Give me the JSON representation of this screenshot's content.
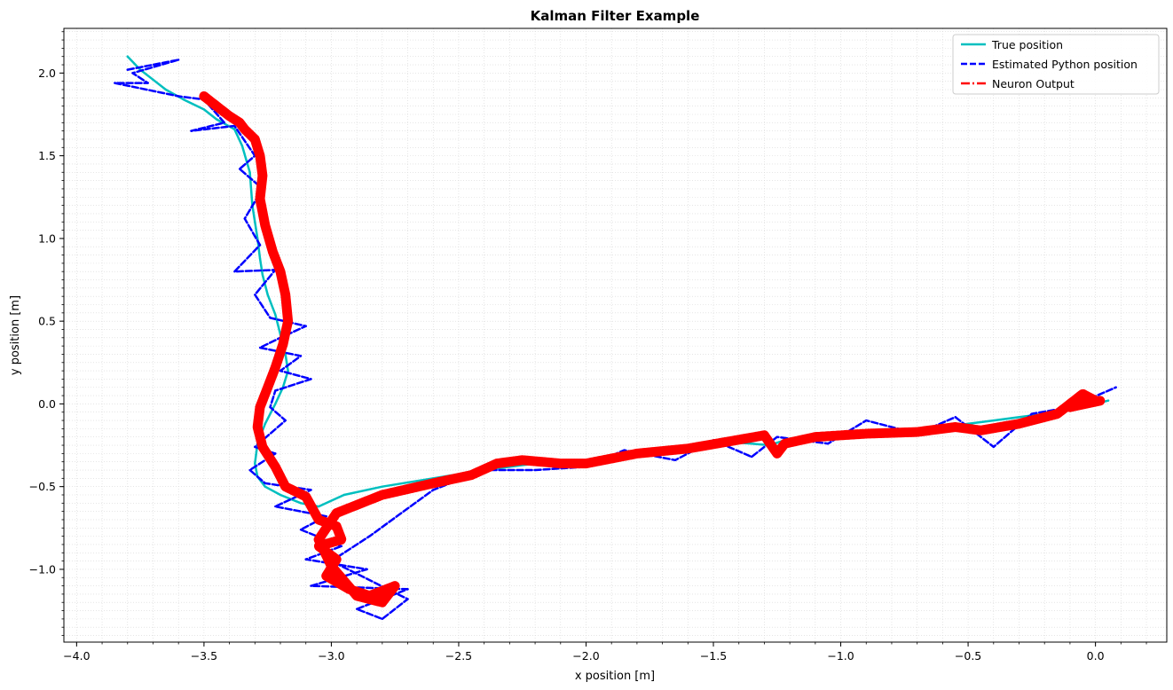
{
  "chart_data": {
    "type": "line",
    "title": "Kalman Filter Example",
    "xlabel": "x position [m]",
    "ylabel": "y position [m]",
    "xlim": [
      -4.05,
      0.28
    ],
    "ylim": [
      -1.44,
      2.27
    ],
    "grid": true,
    "grid_style": "minor dotted",
    "legend_position": "top-right",
    "x_ticks": [
      -4.0,
      -3.5,
      -3.0,
      -2.5,
      -2.0,
      -1.5,
      -1.0,
      -0.5,
      0.0
    ],
    "x_tick_labels": [
      "−4.0",
      "−3.5",
      "−3.0",
      "−2.5",
      "−2.0",
      "−1.5",
      "−1.0",
      "−0.5",
      "0.0"
    ],
    "y_ticks": [
      -1.0,
      -0.5,
      0.0,
      0.5,
      1.0,
      1.5,
      2.0
    ],
    "y_tick_labels": [
      "−1.0",
      "−0.5",
      "0.0",
      "0.5",
      "1.0",
      "1.5",
      "2.0"
    ],
    "series": [
      {
        "name": "True position",
        "color": "#00bfbf",
        "style": "solid",
        "x": [
          -3.8,
          -3.75,
          -3.7,
          -3.65,
          -3.58,
          -3.5,
          -3.45,
          -3.38,
          -3.35,
          -3.32,
          -3.31,
          -3.29,
          -3.28,
          -3.27,
          -3.25,
          -3.22,
          -3.2,
          -3.18,
          -3.17,
          -3.19,
          -3.22,
          -3.26,
          -3.29,
          -3.3,
          -3.29,
          -3.26,
          -3.2,
          -3.12,
          -3.05,
          -2.95,
          -2.8,
          -2.6,
          -2.4,
          -2.2,
          -2.0,
          -1.8,
          -1.6,
          -1.45,
          -1.35,
          -1.28,
          -1.2,
          -1.0,
          -0.8,
          -0.6,
          -0.4,
          -0.2,
          -0.05,
          0.05
        ],
        "y": [
          2.1,
          2.02,
          1.96,
          1.9,
          1.84,
          1.78,
          1.72,
          1.66,
          1.56,
          1.4,
          1.2,
          1.0,
          0.88,
          0.78,
          0.66,
          0.54,
          0.42,
          0.3,
          0.2,
          0.1,
          0.0,
          -0.12,
          -0.24,
          -0.36,
          -0.44,
          -0.5,
          -0.55,
          -0.6,
          -0.62,
          -0.55,
          -0.5,
          -0.45,
          -0.4,
          -0.36,
          -0.36,
          -0.3,
          -0.26,
          -0.23,
          -0.24,
          -0.25,
          -0.21,
          -0.18,
          -0.16,
          -0.14,
          -0.1,
          -0.06,
          -0.02,
          0.02
        ]
      },
      {
        "name": "Estimated Python position",
        "color": "#0000ff",
        "style": "dashed",
        "x": [
          -3.8,
          -3.6,
          -3.78,
          -3.72,
          -3.85,
          -3.6,
          -3.5,
          -3.42,
          -3.55,
          -3.38,
          -3.3,
          -3.36,
          -3.27,
          -3.34,
          -3.28,
          -3.38,
          -3.22,
          -3.3,
          -3.24,
          -3.1,
          -3.2,
          -3.28,
          -3.12,
          -3.2,
          -3.08,
          -3.22,
          -3.24,
          -3.18,
          -3.3,
          -3.22,
          -3.32,
          -3.26,
          -3.08,
          -3.22,
          -3.02,
          -3.12,
          -2.96,
          -3.1,
          -2.86,
          -3.08,
          -2.7,
          -2.9,
          -2.8,
          -2.7,
          -3.0,
          -2.85,
          -2.6,
          -2.4,
          -2.2,
          -2.0,
          -1.85,
          -1.65,
          -1.5,
          -1.35,
          -1.25,
          -1.05,
          -0.9,
          -0.7,
          -0.55,
          -0.4,
          -0.25,
          -0.1,
          0.08
        ],
        "y": [
          2.02,
          2.08,
          2.0,
          1.94,
          1.94,
          1.86,
          1.84,
          1.7,
          1.65,
          1.68,
          1.5,
          1.42,
          1.3,
          1.12,
          0.96,
          0.8,
          0.81,
          0.66,
          0.52,
          0.47,
          0.4,
          0.34,
          0.29,
          0.2,
          0.15,
          0.08,
          -0.02,
          -0.1,
          -0.26,
          -0.3,
          -0.4,
          -0.48,
          -0.52,
          -0.62,
          -0.68,
          -0.76,
          -0.86,
          -0.94,
          -1.0,
          -1.1,
          -1.12,
          -1.24,
          -1.3,
          -1.18,
          -0.95,
          -0.8,
          -0.52,
          -0.4,
          -0.4,
          -0.38,
          -0.28,
          -0.34,
          -0.22,
          -0.32,
          -0.2,
          -0.24,
          -0.1,
          -0.18,
          -0.08,
          -0.26,
          -0.06,
          -0.02,
          0.1
        ]
      },
      {
        "name": "Neuron Output",
        "color": "#ff0000",
        "style": "dashdot",
        "x": [
          -3.5,
          -3.45,
          -3.4,
          -3.36,
          -3.34,
          -3.3,
          -3.28,
          -3.27,
          -3.28,
          -3.26,
          -3.23,
          -3.2,
          -3.18,
          -3.17,
          -3.19,
          -3.22,
          -3.25,
          -3.28,
          -3.29,
          -3.27,
          -3.22,
          -3.18,
          -3.1,
          -3.05,
          -2.98,
          -2.96,
          -3.05,
          -2.98,
          -3.02,
          -2.93,
          -2.85,
          -2.75,
          -2.8,
          -2.9,
          -3.0,
          -3.05,
          -2.98,
          -2.8,
          -2.6,
          -2.45,
          -2.35,
          -2.25,
          -2.1,
          -2.0,
          -1.8,
          -1.6,
          -1.45,
          -1.3,
          -1.25,
          -1.22,
          -1.1,
          -0.9,
          -0.7,
          -0.55,
          -0.45,
          -0.3,
          -0.15,
          -0.05,
          0.0,
          -0.1,
          0.02
        ],
        "y": [
          1.86,
          1.8,
          1.74,
          1.7,
          1.66,
          1.6,
          1.5,
          1.38,
          1.24,
          1.08,
          0.92,
          0.8,
          0.66,
          0.5,
          0.36,
          0.22,
          0.1,
          -0.02,
          -0.14,
          -0.26,
          -0.38,
          -0.5,
          -0.56,
          -0.7,
          -0.74,
          -0.82,
          -0.86,
          -0.94,
          -1.04,
          -1.12,
          -1.16,
          -1.1,
          -1.2,
          -1.16,
          -0.98,
          -0.82,
          -0.66,
          -0.55,
          -0.48,
          -0.43,
          -0.36,
          -0.34,
          -0.36,
          -0.36,
          -0.3,
          -0.27,
          -0.23,
          -0.19,
          -0.3,
          -0.24,
          -0.2,
          -0.18,
          -0.17,
          -0.14,
          -0.16,
          -0.12,
          -0.06,
          0.06,
          0.02,
          -0.02,
          0.02
        ]
      }
    ]
  }
}
